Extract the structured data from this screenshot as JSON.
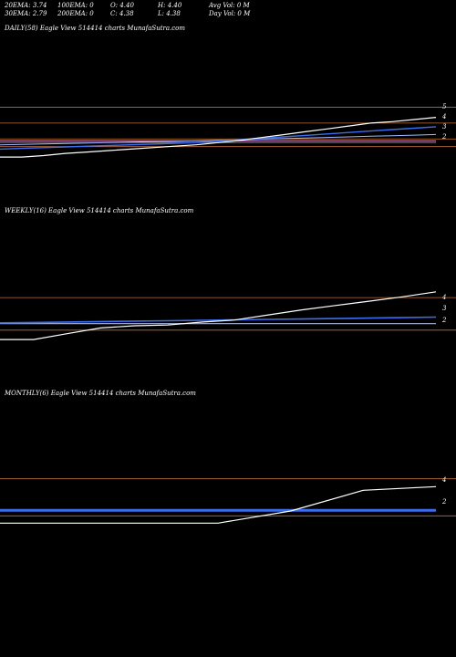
{
  "stats": {
    "ema20": "20EMA: 3.74",
    "ema100": "100EMA: 0",
    "open": "O: 4.40",
    "high": "H: 4.40",
    "avg_vol": "Avg Vol: 0  M",
    "ema30": "30EMA: 2.79",
    "ema200": "200EMA: 0",
    "close": "C: 4.38",
    "low": "L: 4.38",
    "day_vol": "Day Vol: 0  M"
  },
  "colors": {
    "background": "#000000",
    "price": "#ffffff",
    "ema_blue": "#3a6df0",
    "ema_light": "#9fb8ff",
    "pink": "#d78fd0",
    "ref_green": "#8fa060",
    "ref_orange": "#c0703a",
    "ref_brown": "#b5651d"
  },
  "chart_data": [
    {
      "type": "line",
      "title": "DAILY(58) Eagle  View  514414  charts MunafaSutra.com",
      "axis_labels": [
        "5",
        "4",
        "3",
        "2"
      ],
      "series": [
        {
          "values": [
            1.5,
            1.5,
            1.6,
            1.75,
            1.85,
            1.95,
            2.05,
            2.15,
            2.25,
            2.35,
            2.5,
            2.65,
            2.85,
            3.05,
            3.25,
            3.45,
            3.65,
            3.85,
            3.95,
            4.1,
            4.25
          ]
        },
        {
          "values": [
            2.05,
            2.1,
            2.15,
            2.2,
            2.25,
            2.3,
            2.35,
            2.4,
            2.45,
            2.5,
            2.6,
            2.7,
            2.8,
            2.9,
            3.0,
            3.1,
            3.2,
            3.3,
            3.4,
            3.5,
            3.6
          ]
        },
        {
          "values": [
            2.35,
            2.38,
            2.41,
            2.44,
            2.47,
            2.5,
            2.53,
            2.56,
            2.59,
            2.62,
            2.66,
            2.7,
            2.74,
            2.78,
            2.82,
            2.86,
            2.9,
            2.94,
            2.98,
            3.02,
            3.06
          ]
        },
        {
          "values": [
            2.62,
            2.62,
            2.62,
            2.62,
            2.62,
            2.62,
            2.62,
            2.62,
            2.62,
            2.62,
            2.62,
            2.62,
            2.62,
            2.62,
            2.62,
            2.62,
            2.62,
            2.62,
            2.62,
            2.62,
            2.62
          ]
        },
        {
          "values": [
            2.5,
            2.5,
            2.5,
            2.5,
            2.5,
            2.5,
            2.5,
            2.5,
            2.5,
            2.5,
            2.5,
            2.5,
            2.5,
            2.5,
            2.5,
            2.5,
            2.5,
            2.5,
            2.5,
            2.5,
            2.5
          ]
        }
      ],
      "reference_lines": [
        {
          "value": 4.95,
          "color": "#8fa060"
        },
        {
          "value": 3.85,
          "color": "#c0703a"
        },
        {
          "value": 2.75,
          "color": "#b5651d"
        },
        {
          "value": 2.22,
          "color": "#c0703a"
        }
      ],
      "ylim": [
        1.0,
        5.3
      ]
    },
    {
      "type": "line",
      "title": "WEEKLY(16) Eagle  View  514414  charts MunafaSutra.com",
      "axis_labels": [
        "4",
        "3",
        "2"
      ],
      "series": [
        {
          "values": [
            1.0,
            1.0,
            1.4,
            1.8,
            1.95,
            2.0,
            2.2,
            2.35,
            2.7,
            3.05,
            3.35,
            3.65,
            3.95,
            4.3
          ]
        },
        {
          "values": [
            2.15,
            2.18,
            2.21,
            2.24,
            2.27,
            2.3,
            2.33,
            2.36,
            2.39,
            2.42,
            2.45,
            2.48,
            2.51,
            2.55
          ]
        },
        {
          "values": [
            2.1,
            2.1,
            2.1,
            2.1,
            2.1,
            2.1,
            2.1,
            2.1,
            2.1,
            2.1,
            2.1,
            2.1,
            2.1,
            2.1
          ]
        }
      ],
      "reference_lines": [
        {
          "value": 3.9,
          "color": "#c0703a"
        },
        {
          "value": 1.65,
          "color": "#c0703a"
        }
      ],
      "ylim": [
        0.5,
        4.6
      ]
    },
    {
      "type": "line",
      "title": "MONTHLY(6) Eagle  View  514414  charts MunafaSutra.com",
      "axis_labels": [
        "4",
        "2"
      ],
      "series": [
        {
          "values": [
            1.0,
            1.0,
            1.0,
            1.0,
            2.0,
            3.7,
            4.0
          ]
        },
        {
          "values": [
            2.05,
            2.05,
            2.05,
            2.05,
            2.05,
            2.05,
            2.05
          ]
        }
      ],
      "reference_lines": [
        {
          "value": 4.65,
          "color": "#c0703a"
        },
        {
          "value": 1.6,
          "color": "#c0703a"
        }
      ],
      "ylim": [
        0.5,
        5.0
      ]
    }
  ]
}
